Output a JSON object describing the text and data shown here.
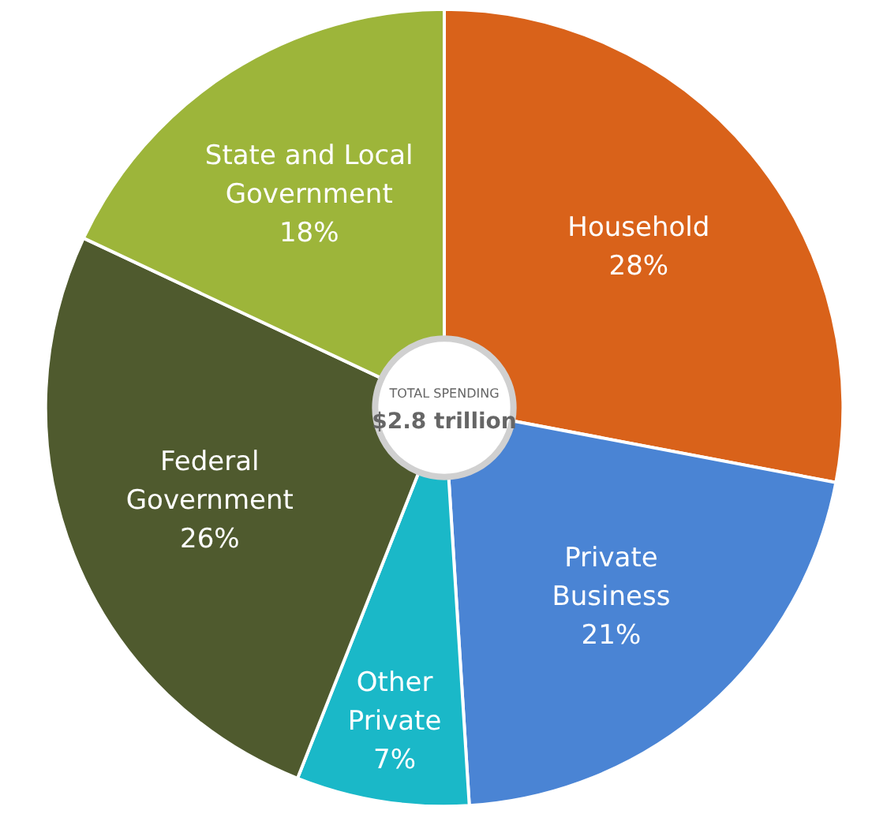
{
  "chart_data": {
    "type": "donut",
    "categories": [
      "Household",
      "Private\nBusiness",
      "Other\nPrivate",
      "Federal\nGovernment",
      "State and Local\nGovernment"
    ],
    "values": [
      28,
      21,
      7,
      26,
      18
    ],
    "colors": [
      "#d9621a",
      "#4a84d4",
      "#1ab8c8",
      "#4f5a2e",
      "#9db53a"
    ],
    "value_labels": [
      "28%",
      "21%",
      "7%",
      "26%",
      "18%"
    ],
    "annotations": [
      "TOTAL SPENDING",
      "$2.8 trillion"
    ]
  }
}
